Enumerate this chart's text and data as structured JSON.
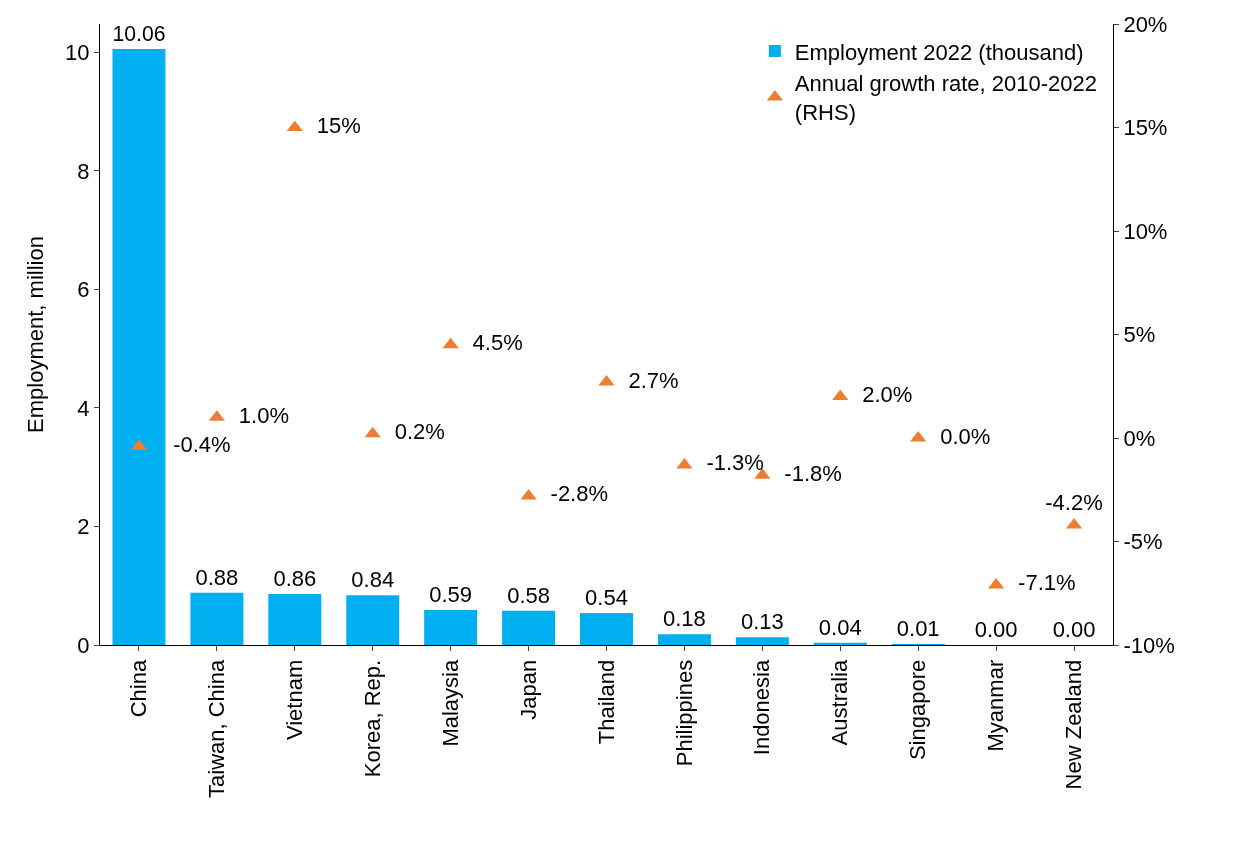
{
  "chart_data": {
    "type": "bar",
    "ylabel": "Employment, million",
    "categories": [
      "China",
      "Taiwan, China",
      "Vietnam",
      "Korea, Rep.",
      "Malaysia",
      "Japan",
      "Thailand",
      "Philippines",
      "Indonesia",
      "Australia",
      "Singapore",
      "Myanmar",
      "New Zealand"
    ],
    "series": [
      {
        "name": "Employment 2022 (thousand)",
        "color": "#00b0f0",
        "values": [
          10.06,
          0.88,
          0.86,
          0.84,
          0.59,
          0.58,
          0.54,
          0.18,
          0.13,
          0.04,
          0.01,
          0.0,
          0.0
        ],
        "value_labels": [
          "10.06",
          "0.88",
          "0.86",
          "0.84",
          "0.59",
          "0.58",
          "0.54",
          "0.18",
          "0.13",
          "0.04",
          "0.01",
          "0.00",
          "0.00"
        ]
      },
      {
        "name": "Annual growth rate, 2010-2022 (RHS)",
        "type": "scatter",
        "axis": "y2",
        "color": "#ed7d31",
        "values": [
          -0.4,
          1.0,
          15,
          0.2,
          4.5,
          -2.8,
          2.7,
          -1.3,
          -1.8,
          2.0,
          0.0,
          -7.1,
          -4.2
        ],
        "value_labels": [
          "-0.4%",
          "1.0%",
          "15%",
          "0.2%",
          "4.5%",
          "-2.8%",
          "2.7%",
          "-1.3%",
          "-1.8%",
          "2.0%",
          "0.0%",
          "-7.1%",
          "-4.2%"
        ]
      }
    ],
    "ylim": [
      0,
      10.48
    ],
    "yticks": [
      0,
      2,
      4,
      6,
      8,
      10
    ],
    "y2lim": [
      -10,
      20
    ],
    "y2ticks": [
      {
        "value": -10,
        "label": "-10%"
      },
      {
        "value": -5,
        "label": "-5%"
      },
      {
        "value": 0,
        "label": "0%"
      },
      {
        "value": 5,
        "label": "5%"
      },
      {
        "value": 10,
        "label": "10%"
      },
      {
        "value": 15,
        "label": "15%"
      },
      {
        "value": 20,
        "label": "20%"
      }
    ],
    "marker": "triangle",
    "legend": "top right"
  }
}
